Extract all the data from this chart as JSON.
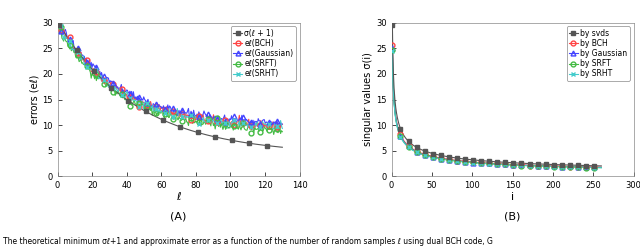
{
  "fig_width": 6.4,
  "fig_height": 2.52,
  "dpi": 100,
  "subplot_A": {
    "xlim": [
      0,
      140
    ],
    "ylim": [
      0,
      30
    ],
    "xticks": [
      0,
      20,
      40,
      60,
      80,
      100,
      120,
      140
    ],
    "yticks": [
      0,
      5,
      10,
      15,
      20,
      25,
      30
    ],
    "xlabel": "ℓ",
    "ylabel": "errors (eℓ)",
    "label_A": "(A)",
    "sigma_color": "#555555",
    "bch_color": "#ff4444",
    "gaussian_color": "#4444ff",
    "srft_color": "#44bb44",
    "srht_color": "#44cccc",
    "legend_entries": [
      "σ(ℓ + 1)",
      "eℓ(BCH)",
      "eℓ(Gaussian)",
      "eℓ(SRFT)",
      "eℓ(SRHT)"
    ]
  },
  "subplot_B": {
    "xlim": [
      0,
      300
    ],
    "ylim": [
      0,
      30
    ],
    "xticks": [
      0,
      50,
      100,
      150,
      200,
      250,
      300
    ],
    "yticks": [
      0,
      5,
      10,
      15,
      20,
      25,
      30
    ],
    "xlabel": "i",
    "ylabel": "singular values σ(i)",
    "label_B": "(B)",
    "svds_color": "#555555",
    "bch_color": "#ff4444",
    "gaussian_color": "#4444ff",
    "srft_color": "#44bb44",
    "srht_color": "#44cccc",
    "legend_entries": [
      "by svds",
      "by BCH",
      "by Gaussian",
      "by SRFT",
      "by SRHT"
    ]
  },
  "caption": "The theoretical minimum σℓ+1 and approximate error as a function of the number of random samples ℓ using dual BCH code, G"
}
